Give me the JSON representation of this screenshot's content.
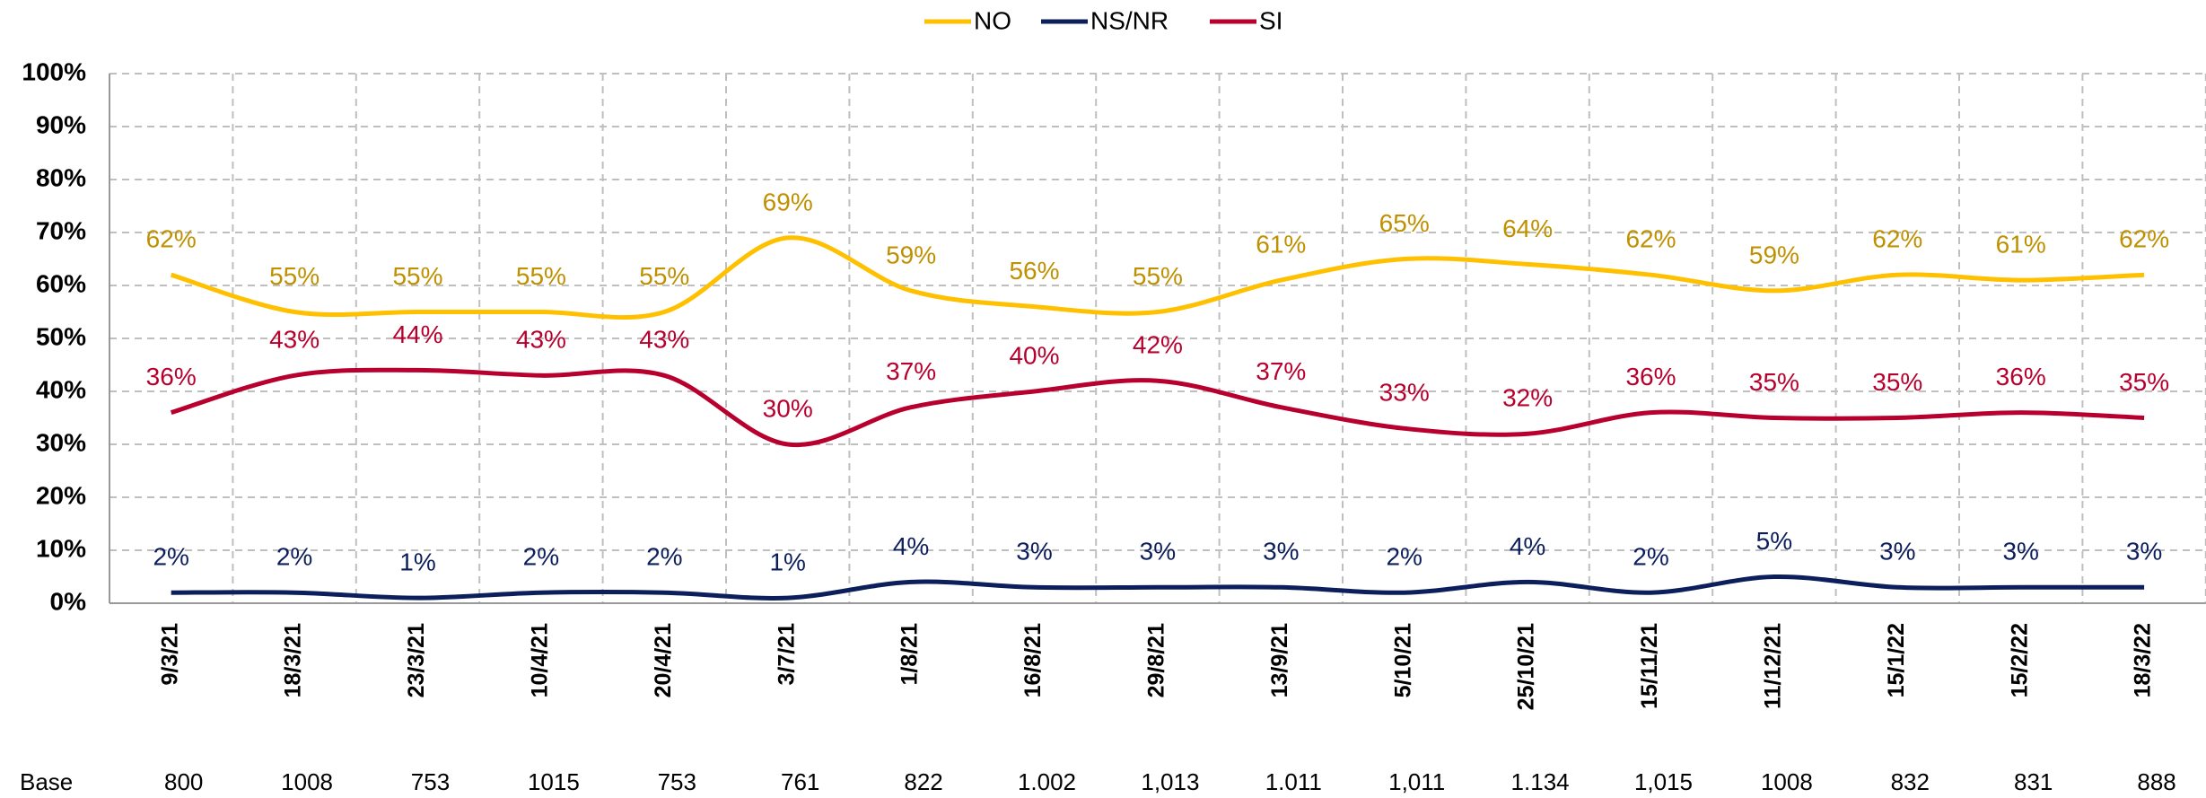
{
  "chart_data": {
    "type": "line",
    "categories": [
      "9/3/21",
      "18/3/21",
      "23/3/21",
      "10/4/21",
      "20/4/21",
      "3/7/21",
      "1/8/21",
      "16/8/21",
      "29/8/21",
      "13/9/21",
      "5/10/21",
      "25/10/21",
      "15/11/21",
      "11/12/21",
      "15/1/22",
      "15/2/22",
      "18/3/22"
    ],
    "series": [
      {
        "name": "NO",
        "color": "#ffc000",
        "label_color": "#bf9000",
        "values": [
          62,
          55,
          55,
          55,
          55,
          69,
          59,
          56,
          55,
          61,
          65,
          64,
          62,
          59,
          62,
          61,
          62
        ],
        "value_labels": [
          "62%",
          "55%",
          "55%",
          "55%",
          "55%",
          "69%",
          "59%",
          "56%",
          "55%",
          "61%",
          "65%",
          "64%",
          "62%",
          "59%",
          "62%",
          "61%",
          "62%"
        ]
      },
      {
        "name": "NS/NR",
        "color": "#0c1f5c",
        "label_color": "#0c1f5c",
        "values": [
          2,
          2,
          1,
          2,
          2,
          1,
          4,
          3,
          3,
          3,
          2,
          4,
          2,
          5,
          3,
          3,
          3
        ],
        "value_labels": [
          "2%",
          "2%",
          "1%",
          "2%",
          "2%",
          "1%",
          "4%",
          "3%",
          "3%",
          "3%",
          "2%",
          "4%",
          "2%",
          "5%",
          "3%",
          "3%",
          "3%"
        ]
      },
      {
        "name": "SI",
        "color": "#b8002e",
        "label_color": "#b8002e",
        "values": [
          36,
          43,
          44,
          43,
          43,
          30,
          37,
          40,
          42,
          37,
          33,
          32,
          36,
          35,
          35,
          36,
          35
        ],
        "value_labels": [
          "36%",
          "43%",
          "44%",
          "43%",
          "43%",
          "30%",
          "37%",
          "40%",
          "42%",
          "37%",
          "33%",
          "32%",
          "36%",
          "35%",
          "35%",
          "36%",
          "35%"
        ]
      }
    ],
    "ylim": [
      0,
      100
    ],
    "yticks": [
      {
        "value": 0,
        "label": "0%"
      },
      {
        "value": 10,
        "label": "10%"
      },
      {
        "value": 20,
        "label": "20%"
      },
      {
        "value": 30,
        "label": "30%"
      },
      {
        "value": 40,
        "label": "40%"
      },
      {
        "value": 50,
        "label": "50%"
      },
      {
        "value": 60,
        "label": "60%"
      },
      {
        "value": 70,
        "label": "70%"
      },
      {
        "value": 80,
        "label": "80%"
      },
      {
        "value": 90,
        "label": "90%"
      },
      {
        "value": 100,
        "label": "100%"
      }
    ],
    "grid": true,
    "legend": "top",
    "base_label": "Base",
    "base": [
      "800",
      "1008",
      "753",
      "1015",
      "753",
      "761",
      "822",
      "1.002",
      "1,013",
      "1.011",
      "1,011",
      "1.134",
      "1,015",
      "1008",
      "832",
      "831",
      "888"
    ]
  }
}
